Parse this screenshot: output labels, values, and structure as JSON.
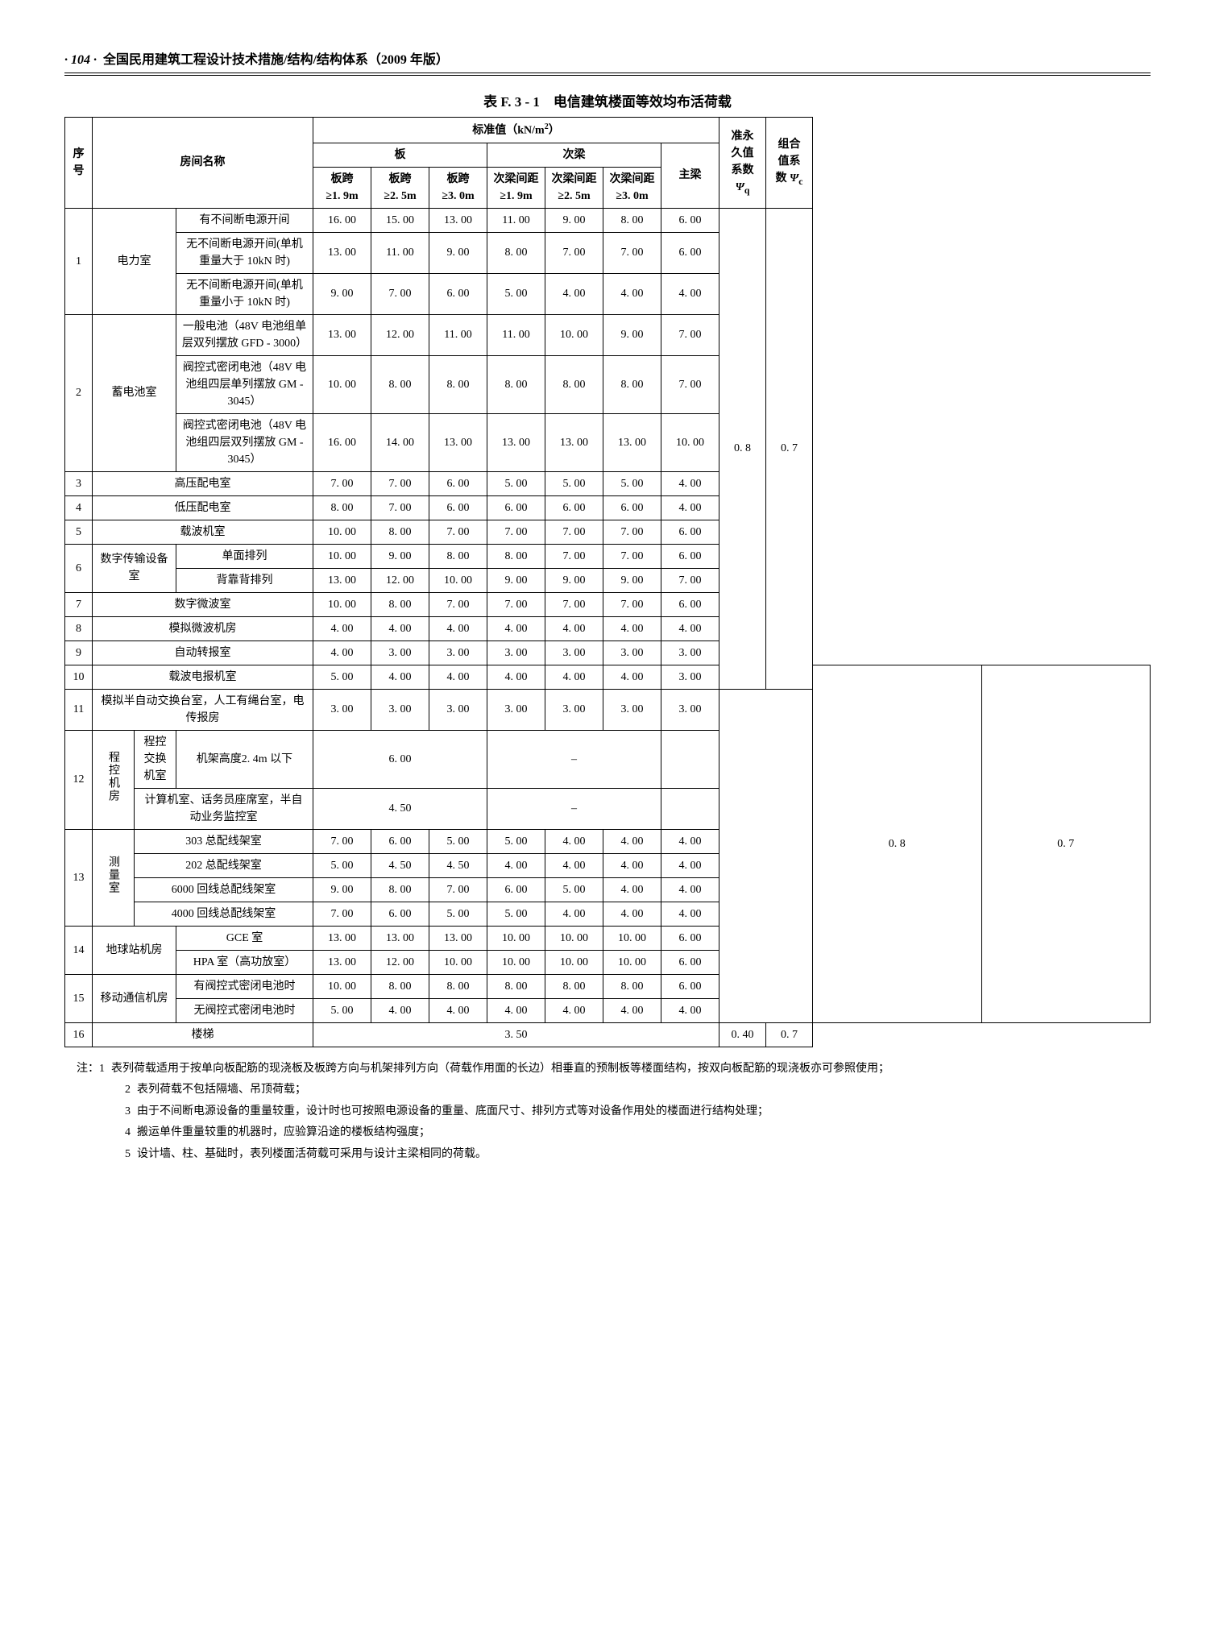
{
  "header": {
    "page_num": "· 104 ·",
    "title": "全国民用建筑工程设计技术措施/结构/结构体系（2009 年版）"
  },
  "table_title": "表 F. 3 - 1　电信建筑楼面等效均布活荷载",
  "head": {
    "seq": "序号",
    "room": "房间名称",
    "std": "标准值（kN/m²）",
    "slab": "板",
    "sec": "次梁",
    "s19": "板跨\n≥1. 9m",
    "s25": "板跨\n≥2. 5m",
    "s30": "板跨\n≥3. 0m",
    "b19": "次梁间距\n≥1. 9m",
    "b25": "次梁间距\n≥2. 5m",
    "b30": "次梁间距\n≥3. 0m",
    "main": "主梁",
    "psi_q": "准永久值系数 Ψq",
    "psi_c": "组合值系数 Ψc"
  },
  "rows": {
    "r1_cat": "电力室",
    "r1a": "有不间断电源开间",
    "r1a_v": [
      "16. 00",
      "15. 00",
      "13. 00",
      "11. 00",
      "9. 00",
      "8. 00",
      "6. 00"
    ],
    "r1b": "无不间断电源开间(单机重量大于 10kN 时)",
    "r1b_v": [
      "13. 00",
      "11. 00",
      "9. 00",
      "8. 00",
      "7. 00",
      "7. 00",
      "6. 00"
    ],
    "r1c": "无不间断电源开间(单机重量小于 10kN 时)",
    "r1c_v": [
      "9. 00",
      "7. 00",
      "6. 00",
      "5. 00",
      "4. 00",
      "4. 00",
      "4. 00"
    ],
    "r2_cat": "蓄电池室",
    "r2a": "一般电池（48V 电池组单层双列摆放 GFD - 3000）",
    "r2a_v": [
      "13. 00",
      "12. 00",
      "11. 00",
      "11. 00",
      "10. 00",
      "9. 00",
      "7. 00"
    ],
    "r2b": "阀控式密闭电池（48V 电池组四层单列摆放 GM - 3045）",
    "r2b_v": [
      "10. 00",
      "8. 00",
      "8. 00",
      "8. 00",
      "8. 00",
      "8. 00",
      "7. 00"
    ],
    "r2c": "阀控式密闭电池（48V 电池组四层双列摆放 GM - 3045）",
    "r2c_v": [
      "16. 00",
      "14. 00",
      "13. 00",
      "13. 00",
      "13. 00",
      "13. 00",
      "10. 00"
    ],
    "r3": "高压配电室",
    "r3_v": [
      "7. 00",
      "7. 00",
      "6. 00",
      "5. 00",
      "5. 00",
      "5. 00",
      "4. 00"
    ],
    "r4": "低压配电室",
    "r4_v": [
      "8. 00",
      "7. 00",
      "6. 00",
      "6. 00",
      "6. 00",
      "6. 00",
      "4. 00"
    ],
    "r5": "载波机室",
    "r5_v": [
      "10. 00",
      "8. 00",
      "7. 00",
      "7. 00",
      "7. 00",
      "7. 00",
      "6. 00"
    ],
    "r6_cat": "数字传输设备室",
    "r6a": "单面排列",
    "r6a_v": [
      "10. 00",
      "9. 00",
      "8. 00",
      "8. 00",
      "7. 00",
      "7. 00",
      "6. 00"
    ],
    "r6b": "背靠背排列",
    "r6b_v": [
      "13. 00",
      "12. 00",
      "10. 00",
      "9. 00",
      "9. 00",
      "9. 00",
      "7. 00"
    ],
    "r7": "数字微波室",
    "r7_v": [
      "10. 00",
      "8. 00",
      "7. 00",
      "7. 00",
      "7. 00",
      "7. 00",
      "6. 00"
    ],
    "r8": "模拟微波机房",
    "r8_v": [
      "4. 00",
      "4. 00",
      "4. 00",
      "4. 00",
      "4. 00",
      "4. 00",
      "4. 00"
    ],
    "r9": "自动转报室",
    "r9_v": [
      "4. 00",
      "3. 00",
      "3. 00",
      "3. 00",
      "3. 00",
      "3. 00",
      "3. 00"
    ],
    "psi_q1": "0. 8",
    "psi_c1": "0. 7",
    "r10": "载波电报机室",
    "r10_v": [
      "5. 00",
      "4. 00",
      "4. 00",
      "4. 00",
      "4. 00",
      "4. 00",
      "3. 00"
    ],
    "r11": "模拟半自动交换台室，人工有绳台室，电传报房",
    "r11_v": [
      "3. 00",
      "3. 00",
      "3. 00",
      "3. 00",
      "3. 00",
      "3. 00",
      "3. 00"
    ],
    "r12_cat": "程控机房",
    "r12a_l": "程控交换机室",
    "r12a_r": "机架高度2. 4m 以下",
    "r12a_val": "6. 00",
    "r12a_dash": "–",
    "r12b": "计算机室、话务员座席室，半自动业务监控室",
    "r12b_val": "4. 50",
    "r12b_dash": "–",
    "r13_cat": "测量室",
    "r13a": "303 总配线架室",
    "r13a_v": [
      "7. 00",
      "6. 00",
      "5. 00",
      "5. 00",
      "4. 00",
      "4. 00",
      "4. 00"
    ],
    "r13b": "202 总配线架室",
    "r13b_v": [
      "5. 00",
      "4. 50",
      "4. 50",
      "4. 00",
      "4. 00",
      "4. 00",
      "4. 00"
    ],
    "r13c": "6000 回线总配线架室",
    "r13c_v": [
      "9. 00",
      "8. 00",
      "7. 00",
      "6. 00",
      "5. 00",
      "4. 00",
      "4. 00"
    ],
    "r13d": "4000 回线总配线架室",
    "r13d_v": [
      "7. 00",
      "6. 00",
      "5. 00",
      "5. 00",
      "4. 00",
      "4. 00",
      "4. 00"
    ],
    "r14_cat": "地球站机房",
    "r14a": "GCE 室",
    "r14a_v": [
      "13. 00",
      "13. 00",
      "13. 00",
      "10. 00",
      "10. 00",
      "10. 00",
      "6. 00"
    ],
    "r14b": "HPA 室（高功放室）",
    "r14b_v": [
      "13. 00",
      "12. 00",
      "10. 00",
      "10. 00",
      "10. 00",
      "10. 00",
      "6. 00"
    ],
    "r15_cat": "移动通信机房",
    "r15a": "有阀控式密闭电池时",
    "r15a_v": [
      "10. 00",
      "8. 00",
      "8. 00",
      "8. 00",
      "8. 00",
      "8. 00",
      "6. 00"
    ],
    "r15b": "无阀控式密闭电池时",
    "r15b_v": [
      "5. 00",
      "4. 00",
      "4. 00",
      "4. 00",
      "4. 00",
      "4. 00",
      "4. 00"
    ],
    "r16": "楼梯",
    "r16_val": "3. 50",
    "psi_q2": "0. 8",
    "psi_c2": "0. 7",
    "psi_q3": "0. 40",
    "psi_c3": "0. 7"
  },
  "notes": {
    "lead": "注：1",
    "n1": "表列荷载适用于按单向板配筋的现浇板及板跨方向与机架排列方向（荷载作用面的长边）相垂直的预制板等楼面结构，按双向板配筋的现浇板亦可参照使用；",
    "n2": "表列荷载不包括隔墙、吊顶荷载；",
    "n3": "由于不间断电源设备的重量较重，设计时也可按照电源设备的重量、底面尺寸、排列方式等对设备作用处的楼面进行结构处理；",
    "n4": "搬运单件重量较重的机器时，应验算沿途的楼板结构强度；",
    "n5": "设计墙、柱、基础时，表列楼面活荷载可采用与设计主梁相同的荷载。"
  }
}
